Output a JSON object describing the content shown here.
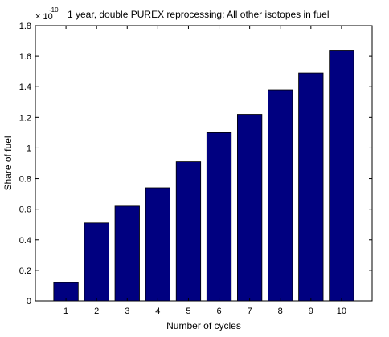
{
  "chart_data": {
    "type": "bar",
    "title": "1 year, double PUREX reprocessing: All other isotopes in fuel",
    "xlabel": "Number of cycles",
    "ylabel": "Share of fuel",
    "y_multiplier": {
      "base": "× 10",
      "exponent": "-10"
    },
    "categories": [
      "1",
      "2",
      "3",
      "4",
      "5",
      "6",
      "7",
      "8",
      "9",
      "10"
    ],
    "values": [
      0.12,
      0.51,
      0.62,
      0.74,
      0.91,
      1.1,
      1.22,
      1.38,
      1.49,
      1.64
    ],
    "ylim": [
      0,
      1.8
    ],
    "yticks": [
      0,
      0.2,
      0.4,
      0.6,
      0.8,
      1,
      1.2,
      1.4,
      1.6,
      1.8
    ],
    "ytick_labels": [
      "0",
      "0.2",
      "0.4",
      "0.6",
      "0.8",
      "1",
      "1.2",
      "1.4",
      "1.6",
      "1.8"
    ],
    "xlim": [
      0,
      11
    ],
    "grid": false,
    "colors": {
      "bar": "#000080",
      "axes": "#000000",
      "background": "#ffffff"
    }
  }
}
